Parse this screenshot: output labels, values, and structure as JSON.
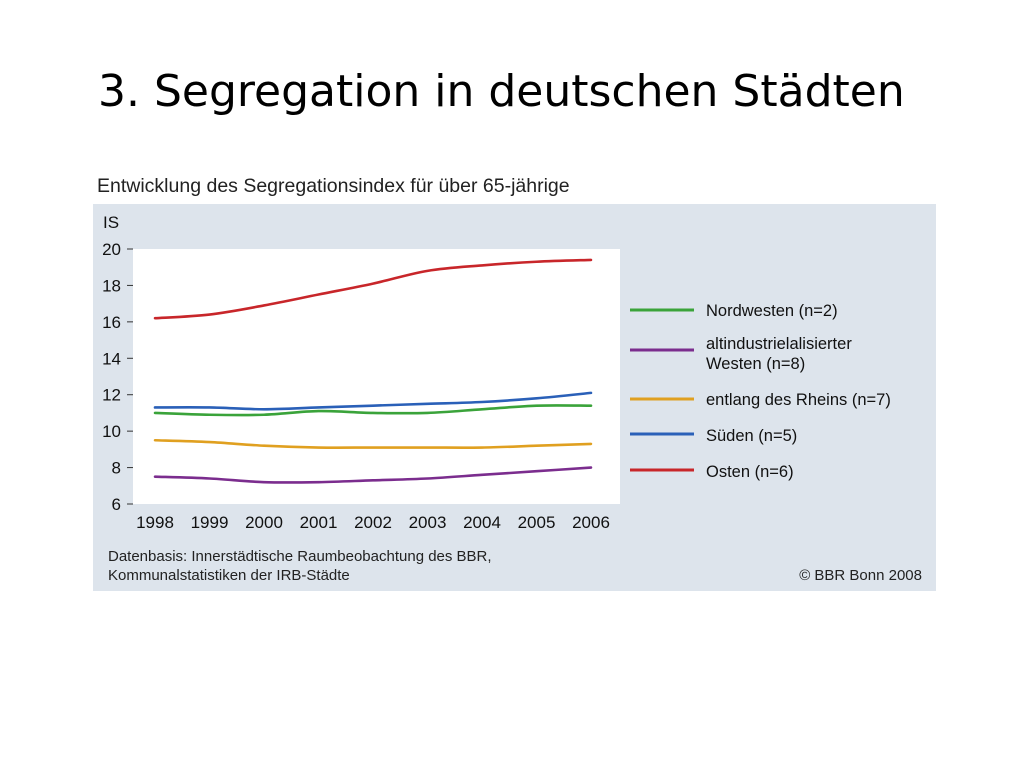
{
  "slide": {
    "title": "3. Segregation in deutschen Städten"
  },
  "chart_data": {
    "type": "line",
    "title": "Entwicklung des Segregationsindex für über 65-jährige",
    "ylabel": "IS",
    "xlabel": "",
    "x": [
      "1998",
      "1999",
      "2000",
      "2001",
      "2002",
      "2003",
      "2004",
      "2005",
      "2006"
    ],
    "ylim": [
      6,
      20
    ],
    "yticks": [
      6,
      8,
      10,
      12,
      14,
      16,
      18,
      20
    ],
    "grid": false,
    "legend_position": "right",
    "series": [
      {
        "name": "Nordwesten (n=2)",
        "color": "#3aa33a",
        "values": [
          11.0,
          10.9,
          10.9,
          11.1,
          11.0,
          11.0,
          11.2,
          11.4,
          11.4
        ]
      },
      {
        "name": "altindustrielalisierter Westen (n=8)",
        "color": "#7b2d8e",
        "values": [
          7.5,
          7.4,
          7.2,
          7.2,
          7.3,
          7.4,
          7.6,
          7.8,
          8.0
        ]
      },
      {
        "name": "entlang des Rheins (n=7)",
        "color": "#e0a020",
        "values": [
          9.5,
          9.4,
          9.2,
          9.1,
          9.1,
          9.1,
          9.1,
          9.2,
          9.3
        ]
      },
      {
        "name": "Süden (n=5)",
        "color": "#2a60b8",
        "values": [
          11.3,
          11.3,
          11.2,
          11.3,
          11.4,
          11.5,
          11.6,
          11.8,
          12.1
        ]
      },
      {
        "name": "Osten (n=6)",
        "color": "#c8262a",
        "values": [
          16.2,
          16.4,
          16.9,
          17.5,
          18.1,
          18.8,
          19.1,
          19.3,
          19.4
        ]
      }
    ],
    "source": [
      "Datenbasis: Innerstädtische Raumbeobachtung des BBR,",
      "Kommunalstatistiken der IRB-Städte"
    ],
    "copyright": "© BBR Bonn 2008"
  }
}
